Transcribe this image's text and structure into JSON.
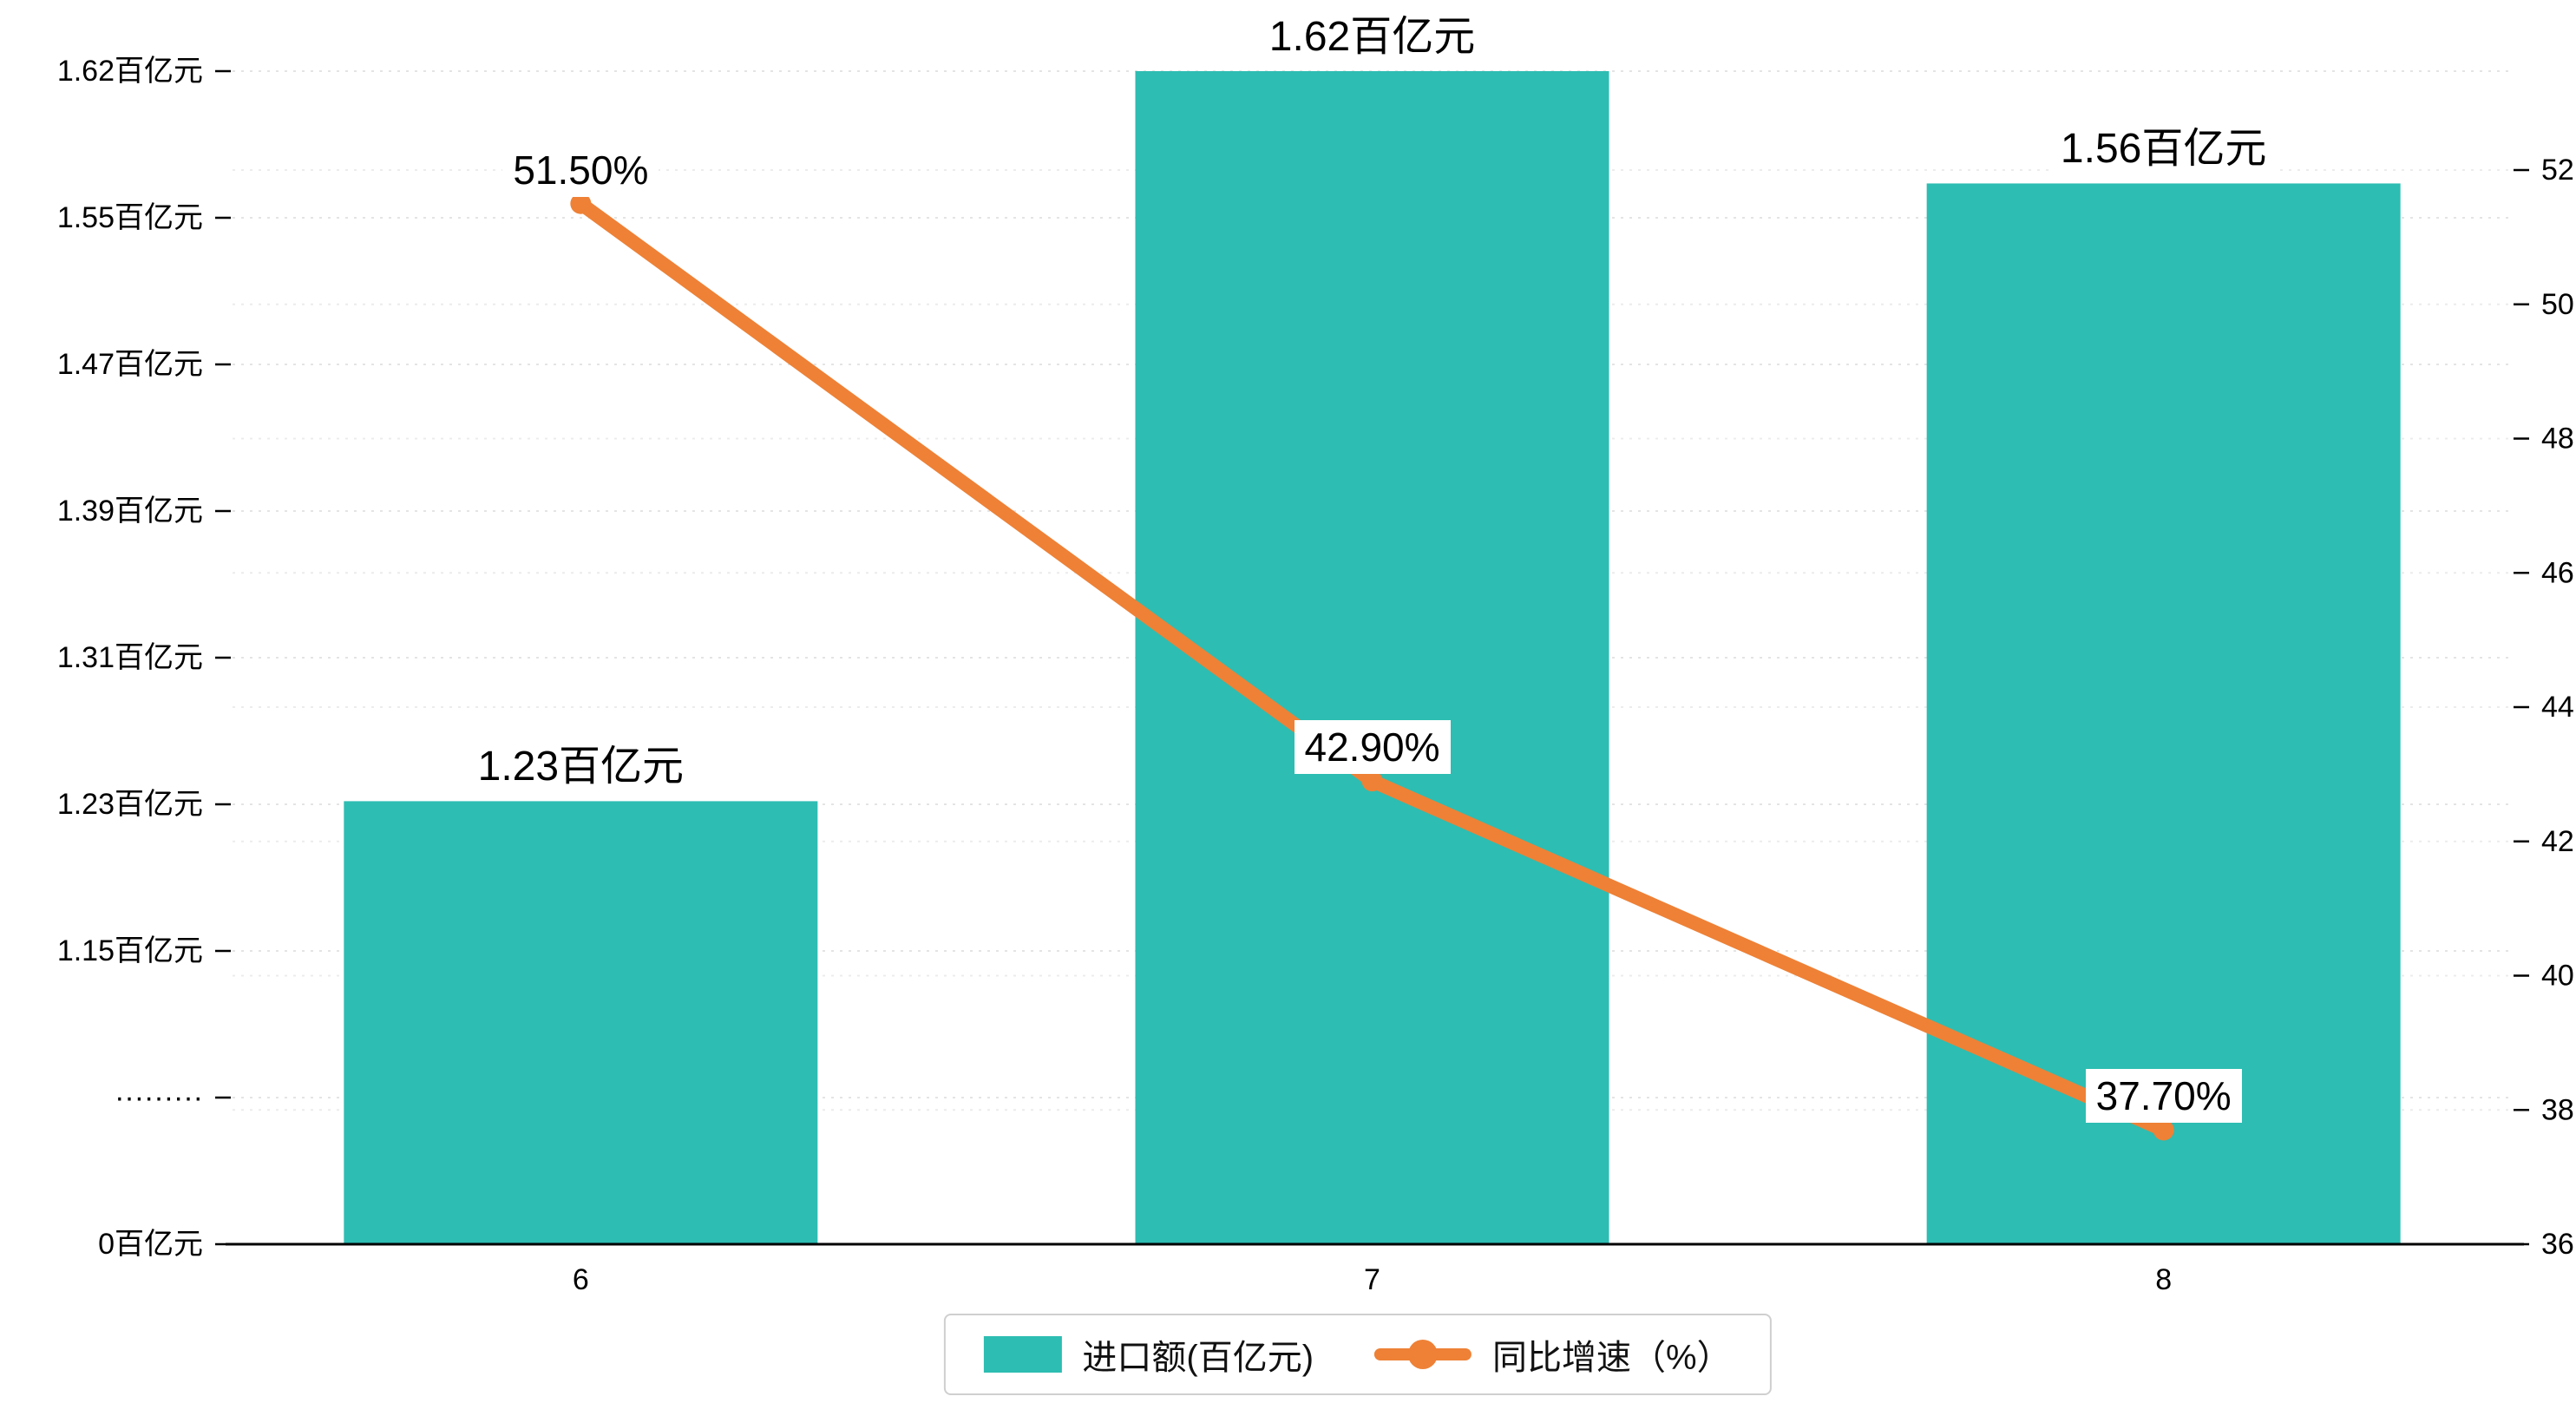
{
  "chart_data": {
    "type": "bar",
    "combo": "bar+line dual-axis",
    "categories": [
      "6",
      "7",
      "8"
    ],
    "series": [
      {
        "name": "进口额(百亿元)",
        "type": "bar",
        "axis": "left",
        "color": "#2dbdb2",
        "values": [
          1.23,
          1.62,
          1.56
        ],
        "labels": [
          "1.23百亿元",
          "1.62百亿元",
          "1.56百亿元"
        ]
      },
      {
        "name": "同比增速（%）",
        "type": "line",
        "axis": "right",
        "color": "#ee8136",
        "values": [
          51.5,
          42.9,
          37.7
        ],
        "labels": [
          "51.50%",
          "42.90%",
          "37.70%"
        ]
      }
    ],
    "left_axis": {
      "tick_labels": [
        "1.62百亿元",
        "1.55百亿元",
        "1.47百亿元",
        "1.39百亿元",
        "1.31百亿元",
        "1.23百亿元",
        "1.15百亿元",
        "·········",
        "0百亿元"
      ],
      "tick_values": [
        1.62,
        1.55,
        1.47,
        1.39,
        1.31,
        1.23,
        1.15,
        null,
        0
      ],
      "broken_axis": true
    },
    "right_axis": {
      "tick_labels": [
        "52",
        "50",
        "48",
        "46",
        "44",
        "42",
        "40",
        "38",
        "36"
      ],
      "min": 36,
      "max": 52
    },
    "x_axis": {
      "tick_labels": [
        "6",
        "7",
        "8"
      ]
    },
    "legend": {
      "items": [
        "进口额(百亿元)",
        "同比增速（%）"
      ],
      "position": "bottom-center"
    },
    "grid": {
      "horizontal": true,
      "style": "dashed"
    },
    "background": "#ffffff"
  }
}
